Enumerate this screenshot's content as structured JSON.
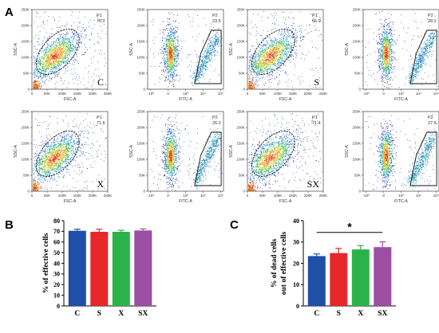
{
  "figure": {
    "panel_labels": [
      "A",
      "B",
      "C"
    ],
    "condition_labels": [
      "C",
      "S",
      "X",
      "SX"
    ]
  },
  "colors": {
    "C": "#1f4fa8",
    "S": "#e8272a",
    "X": "#2bb34a",
    "SX": "#9a4fa3",
    "density_scale": [
      "#1e3a8a",
      "#2f6fd6",
      "#31a9b8",
      "#3cb55a",
      "#b7d634",
      "#f2a127",
      "#e03a1e"
    ]
  },
  "flow": {
    "scatter_axes": {
      "xlabel": "FSC-A",
      "ylabel": "SSC-A",
      "xticks": [
        "0",
        "50K",
        "100K",
        "150K",
        "200K",
        "250K"
      ],
      "yticks": [
        "0",
        "50K",
        "100K",
        "150K",
        "200K",
        "250K"
      ]
    },
    "fitc_axes": {
      "xlabel": "FITC-A",
      "ylabel": "SSC-A",
      "xticks": [
        "-10³",
        "0",
        "10³",
        "10⁴",
        "10⁵"
      ],
      "yticks": [
        "0",
        "50K",
        "100K",
        "150K",
        "200K",
        "250K"
      ]
    },
    "samples": [
      {
        "condition": "C",
        "p1_name": "P1",
        "p1_value": "70.2",
        "p2_name": "P2",
        "p2_value": "23.5"
      },
      {
        "condition": "S",
        "p1_name": "P1",
        "p1_value": "66.9",
        "p2_name": "P2",
        "p2_value": "28.2"
      },
      {
        "condition": "X",
        "p1_name": "P1",
        "p1_value": "71.6",
        "p2_name": "P2",
        "p2_value": "26.3"
      },
      {
        "condition": "SX",
        "p1_name": "P1",
        "p1_value": "71.4",
        "p2_name": "P2",
        "p2_value": "27.5"
      }
    ]
  },
  "chart_data": [
    {
      "panel": "B",
      "type": "bar",
      "categories": [
        "C",
        "S",
        "X",
        "SX"
      ],
      "values": [
        70.5,
        69.5,
        69.5,
        70.8
      ],
      "errors": [
        1.5,
        2.5,
        1.5,
        1.5
      ],
      "ylabel": "% of effective cells",
      "ylim": [
        0,
        80
      ],
      "yticks": [
        0,
        10,
        20,
        30,
        40,
        50,
        60,
        70,
        80
      ],
      "grid": false
    },
    {
      "panel": "C",
      "type": "bar",
      "categories": [
        "C",
        "S",
        "X",
        "SX"
      ],
      "values": [
        23.4,
        24.8,
        26.5,
        27.6
      ],
      "errors": [
        1.0,
        2.2,
        1.8,
        2.5
      ],
      "ylabel_lines": [
        "% of dead cells",
        "out of effective cells"
      ],
      "ylim": [
        0,
        40
      ],
      "yticks": [
        0,
        10,
        20,
        30,
        40
      ],
      "grid": false,
      "significance": {
        "from": "C",
        "to": "SX",
        "label": "*"
      }
    }
  ]
}
